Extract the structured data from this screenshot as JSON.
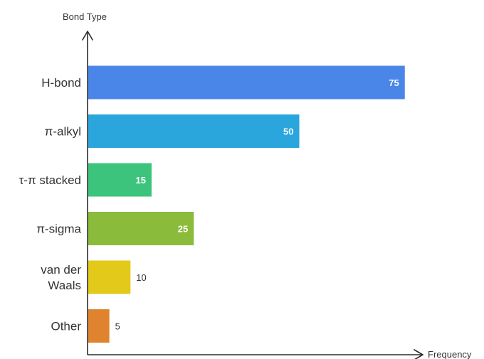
{
  "chart_data": {
    "type": "bar",
    "orientation": "horizontal",
    "title": "",
    "ylabel": "Bond Type",
    "xlabel": "Frequency",
    "categories": [
      "H-bond",
      "π-alkyl",
      "τ-π stacked",
      "π-sigma",
      "van der Waals",
      "Other"
    ],
    "values": [
      75,
      50,
      15,
      25,
      10,
      5
    ],
    "colors": [
      "#4a86e8",
      "#2aa6dc",
      "#3cc47d",
      "#8bbb3a",
      "#e2c91a",
      "#e0832e"
    ],
    "xlim": [
      0,
      80
    ],
    "grid": false,
    "legend": "none"
  }
}
